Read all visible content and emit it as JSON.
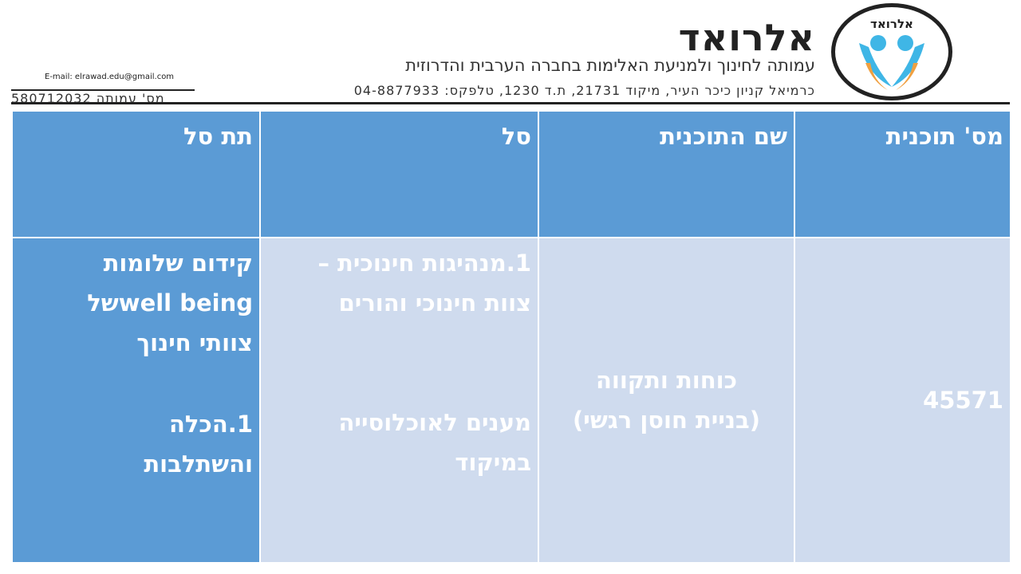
{
  "header": {
    "brand": "אלרואד",
    "logo_text": "אלרואד",
    "tagline": "עמותה לחינוך ולמניעת האלימות בחברה הערבית והדרוזית",
    "address": "כרמיאל קניון כיכר העיר, מיקוד 21731, ת.ד 1230, טלפקס: 04-8877933",
    "email": "E-mail: elrawad.edu@gmail.com",
    "association_number": "מס' עמותה 580712032",
    "colors": {
      "blue": "#3fb6e6",
      "orange": "#f0a040"
    }
  },
  "table": {
    "headers": [
      "מס' תוכנית",
      "שם התוכנית",
      "סל",
      "תת סל"
    ],
    "row": {
      "program_number": "45571",
      "program_name": [
        "כוחות ותקווה",
        "(בניית חוסן רגשי)"
      ],
      "basket": [
        "1.מנהיגות חינוכית –",
        "צוות חינוכי והורים",
        "מענים לאוכלוסייה",
        "במיקוד"
      ],
      "sub_basket": [
        "קידום שלומות",
        "well beingשל",
        "צוותי חינוך",
        "1.הכלה",
        "והשתלבות"
      ]
    },
    "colors": {
      "header": "#5b9bd5",
      "cell": "#cfdbee"
    }
  }
}
